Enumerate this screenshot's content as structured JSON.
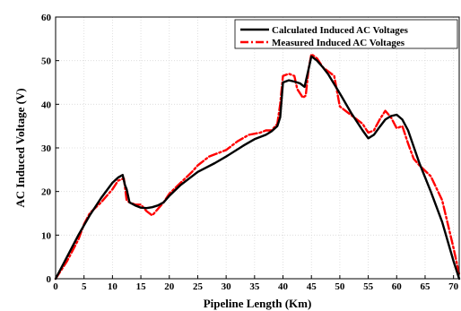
{
  "chart_data": {
    "type": "line",
    "title": "",
    "xlabel": "Pipeline Length (Km)",
    "ylabel": "AC Induced Voltage (V)",
    "xlim": [
      0,
      71
    ],
    "ylim": [
      0,
      60
    ],
    "xticks": [
      0,
      5,
      10,
      15,
      20,
      25,
      30,
      35,
      40,
      45,
      50,
      55,
      60,
      65,
      70
    ],
    "yticks": [
      0,
      10,
      20,
      30,
      40,
      50,
      60
    ],
    "grid": true,
    "legend_position": "top-right",
    "series": [
      {
        "name": "Calculated Induced AC Voltages",
        "color": "#000000",
        "style": "solid",
        "x": [
          0,
          2,
          4,
          6,
          8,
          10,
          11,
          11.8,
          12.2,
          12.5,
          13,
          14,
          15,
          16,
          17,
          18,
          19,
          20,
          22,
          25,
          28,
          30,
          33,
          35,
          37,
          38,
          39,
          39.5,
          40,
          41,
          42,
          43,
          43.8,
          44.5,
          45,
          46,
          47,
          48,
          50,
          52,
          54,
          55,
          56,
          57,
          58,
          59,
          60,
          61,
          62,
          64,
          66,
          68,
          70,
          71
        ],
        "y": [
          0,
          5,
          10,
          14.5,
          18.5,
          22,
          23.2,
          23.8,
          21.5,
          20.5,
          17.5,
          16.8,
          16.3,
          16.2,
          16.4,
          16.8,
          17.5,
          19,
          21.5,
          24.5,
          26.5,
          28,
          30.5,
          32,
          33,
          33.8,
          35,
          37,
          45,
          45.5,
          45.2,
          44.8,
          44,
          48,
          51,
          50,
          48.5,
          46.8,
          42.5,
          38,
          34,
          32.2,
          33,
          34.8,
          36.5,
          37.3,
          37.6,
          36.5,
          34,
          26.5,
          20,
          13,
          4,
          0
        ]
      },
      {
        "name": "Measured Induced AC Voltages",
        "color": "#ff0000",
        "style": "dashdot",
        "x": [
          0,
          2,
          4,
          5,
          6,
          8,
          10,
          11,
          12,
          12.5,
          13,
          14,
          15,
          16,
          17,
          18,
          19,
          20,
          22,
          24,
          25,
          27,
          30,
          32,
          34,
          36,
          37,
          38,
          39,
          39.5,
          40,
          41,
          42,
          42.5,
          43.5,
          44,
          44.5,
          45,
          46,
          47,
          48,
          49,
          50,
          52,
          54,
          55,
          56,
          57,
          58,
          59,
          60,
          61,
          62,
          63,
          64,
          66,
          68,
          70,
          71
        ],
        "y": [
          0,
          4,
          9,
          12.5,
          15,
          17.5,
          20.5,
          22.5,
          23,
          18,
          17.5,
          17,
          17,
          15.5,
          14.5,
          16,
          17.5,
          19.5,
          22,
          24.5,
          26,
          28,
          29.5,
          31.5,
          33,
          33.5,
          34,
          34,
          35.5,
          40,
          46.5,
          47,
          46.5,
          43.5,
          41.5,
          42,
          48,
          51.5,
          50.5,
          48.5,
          47.5,
          46.5,
          39.5,
          37.5,
          35.5,
          33.5,
          34,
          36.5,
          38.5,
          37,
          34.5,
          35,
          31,
          27.5,
          26,
          23.5,
          18,
          7,
          1
        ]
      }
    ]
  }
}
